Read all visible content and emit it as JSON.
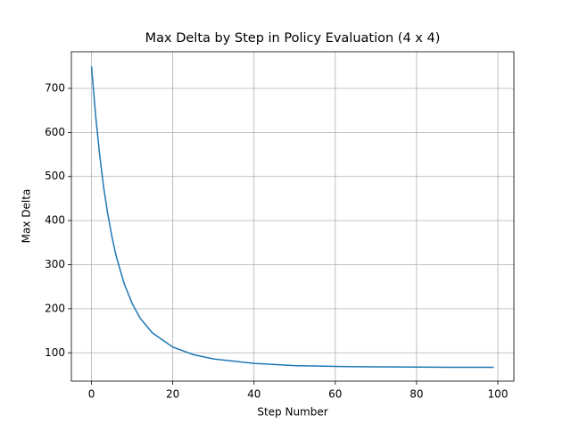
{
  "chart_data": {
    "type": "line",
    "title": "Max Delta by Step in Policy Evaluation (4 x 4)",
    "x_label": "Step Number",
    "y_label": "Max Delta",
    "x": [
      0,
      1,
      2,
      3,
      4,
      5,
      6,
      8,
      10,
      12,
      15,
      20,
      25,
      30,
      40,
      50,
      60,
      70,
      80,
      90,
      99
    ],
    "series": [
      {
        "name": "Max Delta",
        "color": "#1f77b4",
        "values": [
          750,
          640,
          550,
          475,
          415,
          365,
          322,
          258,
          212,
          178,
          145,
          113,
          96,
          86,
          76,
          71,
          69,
          68,
          67.5,
          67,
          67
        ]
      }
    ],
    "xlim": [
      -4.95,
      103.95
    ],
    "ylim": [
      35.7,
      783
    ],
    "xticks": [
      0,
      20,
      40,
      60,
      80,
      100
    ],
    "yticks": [
      100,
      200,
      300,
      400,
      500,
      600,
      700
    ],
    "grid": true
  }
}
